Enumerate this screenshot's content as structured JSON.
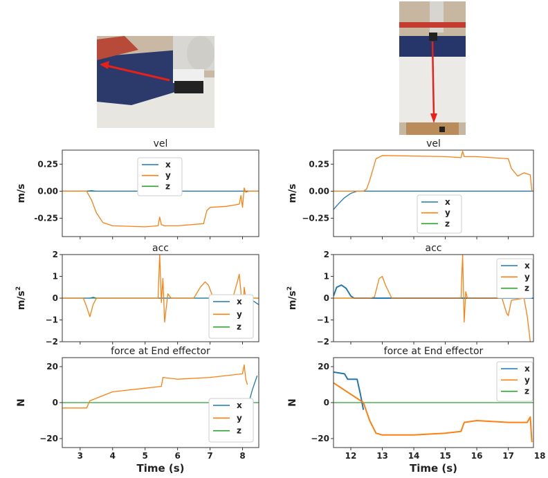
{
  "colors": {
    "x": "#1f77b4",
    "y": "#ff7f0e",
    "z": "#2ca02c"
  },
  "columns": [
    {
      "xlabel": "Time (s)",
      "xticks": [
        "3",
        "4",
        "5",
        "6",
        "7",
        "8"
      ],
      "photo_icon": "robot-arm-push-left",
      "panels": [
        {
          "title": "vel",
          "ylabel": "m/s",
          "ylabel_sup": "",
          "yticks": [
            "0.25",
            "0.00",
            "-0.25"
          ],
          "legend": [
            "x",
            "y",
            "z"
          ]
        },
        {
          "title": "acc",
          "ylabel": "m/s",
          "ylabel_sup": "2",
          "yticks": [
            "2",
            "1",
            "0",
            "−1",
            "−2"
          ],
          "legend": [
            "x",
            "y",
            "z"
          ]
        },
        {
          "title": "force at End effector",
          "ylabel": "N",
          "ylabel_sup": "",
          "yticks": [
            "20",
            "0",
            "−20"
          ],
          "legend": [
            "x",
            "y",
            "z"
          ]
        }
      ]
    },
    {
      "xlabel": "Time (s)",
      "xticks": [
        "12",
        "13",
        "14",
        "15",
        "16",
        "17",
        "18"
      ],
      "photo_icon": "robot-arm-push-down",
      "panels": [
        {
          "title": "vel",
          "ylabel": "m/s",
          "ylabel_sup": "",
          "yticks": [
            "0.25",
            "0.00",
            "−0.25"
          ],
          "legend": [
            "x",
            "y",
            "z"
          ]
        },
        {
          "title": "acc",
          "ylabel": "m/s",
          "ylabel_sup": "2",
          "yticks": [
            "2",
            "1",
            "0",
            "−1",
            "−2"
          ],
          "legend": [
            "x",
            "y",
            "z"
          ]
        },
        {
          "title": "force at End effector",
          "ylabel": "N",
          "ylabel_sup": "",
          "yticks": [
            "20",
            "0",
            "−20"
          ],
          "legend": [
            "x",
            "y",
            "z"
          ]
        }
      ]
    }
  ],
  "chart_data": [
    {
      "type": "line",
      "title": "vel",
      "ylabel": "m/s",
      "xlim": [
        2.45,
        8.5
      ],
      "ylim": [
        -0.42,
        0.38
      ],
      "series": [
        {
          "name": "x",
          "x": [
            2.45,
            3.2,
            3.35,
            3.5,
            8.5
          ],
          "y": [
            0,
            0,
            0.005,
            0,
            0
          ]
        },
        {
          "name": "y",
          "x": [
            2.45,
            3.2,
            3.35,
            3.5,
            3.7,
            4.0,
            5.0,
            5.4,
            5.45,
            5.5,
            5.6,
            6.0,
            6.8,
            6.9,
            7.0,
            7.5,
            7.9,
            7.95,
            8.0,
            8.05,
            8.1,
            8.2,
            8.5
          ],
          "y": [
            0,
            0,
            -0.08,
            -0.2,
            -0.29,
            -0.32,
            -0.33,
            -0.32,
            -0.24,
            -0.31,
            -0.32,
            -0.32,
            -0.3,
            -0.18,
            -0.15,
            -0.14,
            -0.12,
            -0.04,
            -0.15,
            0.03,
            -0.01,
            0,
            0
          ]
        },
        {
          "name": "z",
          "x": [
            2.45,
            8.5
          ],
          "y": [
            0,
            0
          ]
        }
      ]
    },
    {
      "type": "line",
      "title": "acc",
      "ylabel": "m/s2",
      "xlim": [
        2.45,
        8.5
      ],
      "ylim": [
        -2,
        2
      ],
      "series": [
        {
          "name": "x",
          "x": [
            2.45,
            3.3,
            3.4,
            3.5,
            8.2,
            8.35,
            8.5
          ],
          "y": [
            0,
            0,
            0.04,
            0,
            0,
            -0.15,
            -0.3
          ]
        },
        {
          "name": "y",
          "x": [
            2.45,
            3.1,
            3.2,
            3.3,
            3.4,
            3.5,
            3.6,
            5.4,
            5.45,
            5.5,
            5.55,
            5.6,
            5.7,
            5.8,
            6.5,
            6.7,
            6.85,
            6.95,
            7.1,
            7.7,
            7.85,
            7.9,
            7.95,
            8.0,
            8.05,
            8.1,
            8.5
          ],
          "y": [
            0,
            0,
            -0.4,
            -0.85,
            -0.3,
            0,
            0,
            0,
            2,
            -0.2,
            0.9,
            -1.1,
            0.2,
            0,
            0,
            0.5,
            0.75,
            0.6,
            0,
            0,
            0.8,
            1.1,
            0.3,
            -1.7,
            0.5,
            0,
            0
          ]
        },
        {
          "name": "z",
          "x": [
            2.45,
            8.5
          ],
          "y": [
            0,
            0
          ]
        }
      ]
    },
    {
      "type": "line",
      "title": "force at End effector",
      "ylabel": "N",
      "xlim": [
        2.45,
        8.5
      ],
      "ylim": [
        -25,
        25
      ],
      "series": [
        {
          "name": "x",
          "x": [
            8.15,
            8.3,
            8.45
          ],
          "y": [
            -3,
            7,
            15
          ]
        },
        {
          "name": "y",
          "x": [
            2.45,
            3.2,
            3.3,
            4.0,
            5.0,
            5.5,
            5.55,
            6.0,
            7.0,
            7.5,
            8.0,
            8.05,
            8.1,
            8.15
          ],
          "y": [
            -3,
            -3,
            1,
            6,
            8,
            9,
            14,
            13,
            14,
            15,
            16,
            21,
            13,
            10
          ]
        },
        {
          "name": "z",
          "x": [
            2.45,
            8.5
          ],
          "y": [
            0,
            0
          ]
        }
      ]
    },
    {
      "type": "line",
      "title": "vel",
      "ylabel": "m/s",
      "xlim": [
        11.45,
        17.8
      ],
      "ylim": [
        -0.42,
        0.38
      ],
      "series": [
        {
          "name": "x",
          "x": [
            11.45,
            11.6,
            11.8,
            12.0,
            12.2,
            17.8
          ],
          "y": [
            -0.17,
            -0.12,
            -0.06,
            -0.02,
            0,
            0
          ]
        },
        {
          "name": "y",
          "x": [
            11.45,
            12.4,
            12.5,
            12.6,
            12.8,
            13.0,
            15.0,
            15.5,
            15.55,
            15.6,
            16.0,
            17.0,
            17.1,
            17.3,
            17.5,
            17.7,
            17.75
          ],
          "y": [
            0,
            0,
            0.02,
            0.1,
            0.3,
            0.33,
            0.32,
            0.31,
            0.37,
            0.32,
            0.32,
            0.3,
            0.21,
            0.14,
            0.17,
            0.15,
            0
          ]
        },
        {
          "name": "z",
          "x": [
            11.45,
            17.8
          ],
          "y": [
            0,
            0
          ]
        }
      ]
    },
    {
      "type": "line",
      "title": "acc",
      "ylabel": "m/s2",
      "xlim": [
        11.45,
        17.8
      ],
      "ylim": [
        -2,
        2
      ],
      "series": [
        {
          "name": "x",
          "x": [
            11.45,
            11.55,
            11.7,
            11.85,
            12.0,
            12.1,
            12.3,
            17.8
          ],
          "y": [
            0.1,
            0.5,
            0.6,
            0.45,
            0.1,
            0,
            0,
            0
          ],
          "width": 2
        },
        {
          "name": "y",
          "x": [
            11.45,
            12.6,
            12.75,
            12.9,
            13.0,
            13.1,
            13.3,
            15.4,
            15.5,
            15.55,
            15.6,
            15.65,
            15.7,
            16.8,
            16.95,
            17.0,
            17.1,
            17.5,
            17.6,
            17.7
          ],
          "y": [
            0,
            0,
            0.05,
            0.9,
            1.0,
            0.6,
            0,
            0,
            0,
            2,
            -1.1,
            0.3,
            0,
            0,
            -0.7,
            -0.8,
            -0.1,
            0,
            -0.8,
            -2
          ]
        },
        {
          "name": "z",
          "x": [
            11.45,
            17.8
          ],
          "y": [
            0,
            0
          ]
        }
      ]
    },
    {
      "type": "line",
      "title": "force at End effector",
      "ylabel": "N",
      "xlim": [
        11.45,
        17.8
      ],
      "ylim": [
        -25,
        25
      ],
      "series": [
        {
          "name": "x",
          "x": [
            11.45,
            11.8,
            11.9,
            12.2,
            12.3,
            12.4
          ],
          "y": [
            17,
            16,
            13,
            13,
            5,
            -4
          ],
          "width": 2
        },
        {
          "name": "y",
          "x": [
            11.45,
            12.4,
            12.6,
            12.8,
            13.0,
            14.0,
            15.0,
            15.5,
            15.6,
            16.0,
            17.0,
            17.6,
            17.7,
            17.75
          ],
          "y": [
            11,
            0,
            -10,
            -17,
            -18,
            -18,
            -17,
            -16,
            -11,
            -10,
            -11,
            -11,
            -8,
            -22
          ],
          "width": 2
        },
        {
          "name": "z",
          "x": [
            11.45,
            17.8
          ],
          "y": [
            0,
            0
          ]
        }
      ]
    }
  ]
}
